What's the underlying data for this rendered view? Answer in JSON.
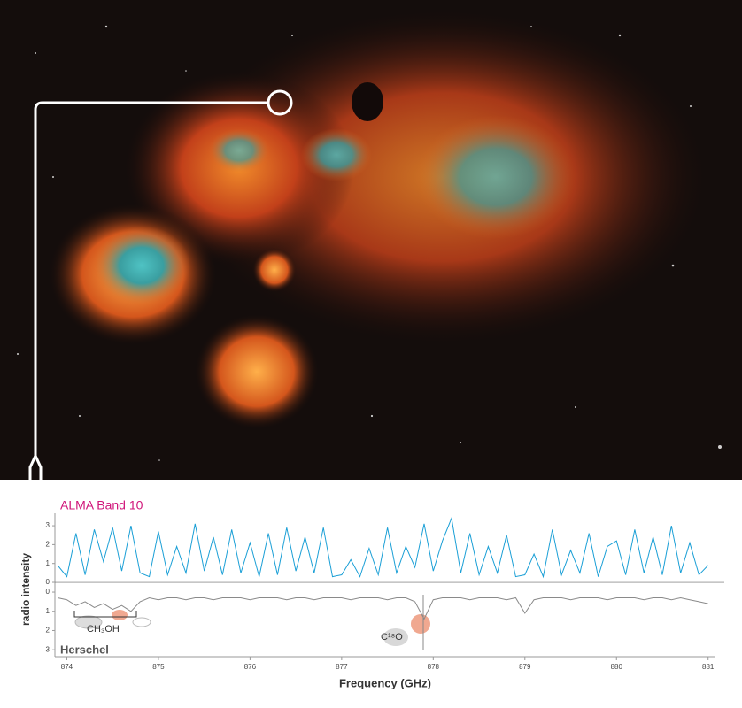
{
  "chart_data": {
    "type": "line",
    "ylabel": "radio intensity",
    "xlabel": "Frequency (GHz)",
    "annotations": [
      "CH₃OH",
      "C¹⁸O"
    ],
    "x": [
      873.9,
      874.0,
      874.1,
      874.2,
      874.3,
      874.4,
      874.5,
      874.6,
      874.7,
      874.8,
      874.9,
      875.0,
      875.1,
      875.2,
      875.3,
      875.4,
      875.5,
      875.6,
      875.7,
      875.8,
      875.9,
      876.0,
      876.1,
      876.2,
      876.3,
      876.4,
      876.5,
      876.6,
      876.7,
      876.8,
      876.9,
      877.0,
      877.1,
      877.2,
      877.3,
      877.4,
      877.5,
      877.6,
      877.7,
      877.8,
      877.9,
      878.0,
      878.1,
      878.2,
      878.3,
      878.4,
      878.5,
      878.6,
      878.7,
      878.8,
      878.9,
      879.0,
      879.1,
      879.2,
      879.3,
      879.4,
      879.5,
      879.6,
      879.7,
      879.8,
      879.9,
      880.0,
      880.1,
      880.2,
      880.3,
      880.4,
      880.5,
      880.6,
      880.7,
      880.8,
      880.9,
      881.0
    ],
    "series": [
      {
        "name": "ALMA Band 10",
        "color": "#1a9fd6",
        "axis": "y",
        "values": [
          0.9,
          0.3,
          2.6,
          0.4,
          2.8,
          1.1,
          2.9,
          0.6,
          3.0,
          0.5,
          0.3,
          2.7,
          0.4,
          1.9,
          0.5,
          3.1,
          0.6,
          2.4,
          0.4,
          2.8,
          0.5,
          2.1,
          0.3,
          2.6,
          0.4,
          2.9,
          0.6,
          2.4,
          0.5,
          2.9,
          0.3,
          0.4,
          1.2,
          0.3,
          1.8,
          0.4,
          2.9,
          0.5,
          1.9,
          0.8,
          3.1,
          0.6,
          2.2,
          3.4,
          0.5,
          2.6,
          0.4,
          1.9,
          0.5,
          2.5,
          0.3,
          0.4,
          1.5,
          0.3,
          2.8,
          0.4,
          1.7,
          0.5,
          2.6,
          0.3,
          1.9,
          2.2,
          0.4,
          2.8,
          0.5,
          2.4,
          0.4,
          3.0,
          0.5,
          2.1,
          0.4,
          0.9
        ]
      },
      {
        "name": "Herschel",
        "color": "#8a8a8a",
        "axis": "y2",
        "values": [
          0.3,
          0.4,
          0.7,
          0.5,
          0.8,
          0.6,
          0.9,
          0.7,
          1.0,
          0.5,
          0.3,
          0.4,
          0.3,
          0.3,
          0.4,
          0.3,
          0.3,
          0.4,
          0.3,
          0.3,
          0.3,
          0.4,
          0.3,
          0.3,
          0.3,
          0.4,
          0.3,
          0.3,
          0.4,
          0.3,
          0.3,
          0.3,
          0.4,
          0.3,
          0.3,
          0.3,
          0.4,
          0.3,
          0.3,
          0.5,
          1.4,
          0.4,
          0.3,
          0.3,
          0.3,
          0.4,
          0.3,
          0.3,
          0.3,
          0.4,
          0.3,
          1.1,
          0.4,
          0.3,
          0.3,
          0.3,
          0.4,
          0.3,
          0.3,
          0.3,
          0.4,
          0.3,
          0.3,
          0.3,
          0.4,
          0.3,
          0.3,
          0.4,
          0.3,
          0.4,
          0.5,
          0.6
        ]
      }
    ],
    "xlim": [
      873.87,
      881.08
    ],
    "xticks": [
      874,
      875,
      876,
      877,
      878,
      879,
      880,
      881
    ],
    "ylim": [
      -3.94,
      3.66
    ],
    "yticks": [
      0,
      1,
      2,
      3
    ],
    "y2lim": [
      3.36,
      -4.1
    ],
    "y2ticks": [
      0,
      1,
      2,
      3
    ]
  }
}
